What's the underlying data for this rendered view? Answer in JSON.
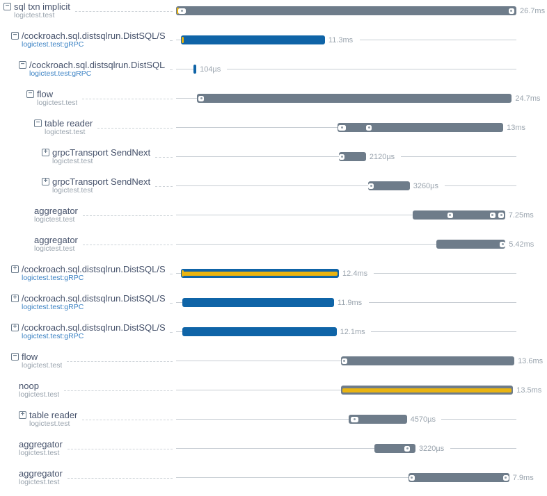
{
  "chart_data": {
    "type": "bar",
    "variant": "trace-span-waterfall-gantt",
    "title": "",
    "unit": "ms",
    "trace_total_ms": 26.7,
    "timeline_axis": "hidden (no ticks shown; bars scaled to total trace duration 26.7ms)",
    "spans": [
      {
        "name": "sql txn implicit",
        "service": "logictest.test",
        "service_is_link": false,
        "toggle": "collapse",
        "depth": 0,
        "start_ms": 0,
        "duration_ms": 26.7,
        "duration_label": "26.7ms",
        "color": "gray",
        "yellow_tick": true,
        "yellow_stripe": false,
        "markers": [
          {
            "at_ms": 0.44,
            "style": "pill"
          },
          {
            "at_ms": 26.3,
            "style": "dot"
          }
        ]
      },
      {
        "name": "/cockroach.sql.distsqlrun.DistSQL/Set",
        "service": "logictest.test:gRPC",
        "service_is_link": true,
        "toggle": "collapse",
        "depth": 1,
        "start_ms": 0.38,
        "duration_ms": 11.3,
        "duration_label": "11.3ms",
        "color": "blue",
        "yellow_tick": true,
        "yellow_stripe": false,
        "markers": []
      },
      {
        "name": "/cockroach.sql.distsqlrun.DistSQL/S",
        "service": "logictest.test:gRPC",
        "service_is_link": true,
        "toggle": "collapse",
        "depth": 2,
        "start_ms": 1.37,
        "duration_ms": 0.104,
        "duration_label": "104µs",
        "color": "blue",
        "yellow_tick": false,
        "yellow_stripe": false,
        "markers": []
      },
      {
        "name": "flow",
        "service": "logictest.test",
        "service_is_link": false,
        "toggle": "collapse",
        "depth": 3,
        "start_ms": 1.64,
        "duration_ms": 24.7,
        "duration_label": "24.7ms",
        "color": "gray",
        "yellow_tick": false,
        "yellow_stripe": false,
        "markers": [
          {
            "at_ms": 1.97,
            "style": "dot"
          }
        ]
      },
      {
        "name": "table reader",
        "service": "logictest.test",
        "service_is_link": false,
        "toggle": "collapse",
        "depth": 4,
        "start_ms": 12.67,
        "duration_ms": 13,
        "duration_label": "13ms",
        "color": "gray",
        "yellow_tick": false,
        "yellow_stripe": false,
        "markers": [
          {
            "at_ms": 13.05,
            "style": "pill"
          },
          {
            "at_ms": 15.13,
            "style": "dot"
          }
        ]
      },
      {
        "name": "grpcTransport SendNext",
        "service": "logictest.test",
        "service_is_link": false,
        "toggle": "expand",
        "depth": 5,
        "start_ms": 12.78,
        "duration_ms": 2.12,
        "duration_label": "2120µs",
        "color": "gray",
        "yellow_tick": false,
        "yellow_stripe": false,
        "markers": [
          {
            "at_ms": 13.0,
            "style": "dot"
          }
        ]
      },
      {
        "name": "grpcTransport SendNext",
        "service": "logictest.test",
        "service_is_link": false,
        "toggle": "expand",
        "depth": 5,
        "start_ms": 15.07,
        "duration_ms": 3.26,
        "duration_label": "3260µs",
        "color": "gray",
        "yellow_tick": false,
        "yellow_stripe": false,
        "markers": [
          {
            "at_ms": 15.29,
            "style": "dot"
          }
        ]
      },
      {
        "name": "aggregator",
        "service": "logictest.test",
        "service_is_link": false,
        "toggle": null,
        "depth": 4,
        "start_ms": 18.56,
        "duration_ms": 7.25,
        "duration_label": "7.25ms",
        "color": "gray",
        "yellow_tick": false,
        "yellow_stripe": false,
        "markers": [
          {
            "at_ms": 21.51,
            "style": "dot"
          },
          {
            "at_ms": 24.84,
            "style": "dot"
          },
          {
            "at_ms": 25.5,
            "style": "dot"
          }
        ]
      },
      {
        "name": "aggregator",
        "service": "logictest.test",
        "service_is_link": false,
        "toggle": null,
        "depth": 4,
        "start_ms": 20.42,
        "duration_ms": 5.42,
        "duration_label": "5.42ms",
        "color": "gray",
        "yellow_tick": false,
        "yellow_stripe": false,
        "markers": [
          {
            "at_ms": 25.61,
            "style": "dot"
          }
        ]
      },
      {
        "name": "/cockroach.sql.distsqlrun.DistSQL/Set",
        "service": "logictest.test:gRPC",
        "service_is_link": true,
        "toggle": "expand",
        "depth": 1,
        "start_ms": 0.38,
        "duration_ms": 12.4,
        "duration_label": "12.4ms",
        "color": "blue",
        "yellow_tick": true,
        "yellow_stripe": true,
        "markers": []
      },
      {
        "name": "/cockroach.sql.distsqlrun.DistSQL/Set",
        "service": "logictest.test:gRPC",
        "service_is_link": true,
        "toggle": "expand",
        "depth": 1,
        "start_ms": 0.49,
        "duration_ms": 11.9,
        "duration_label": "11.9ms",
        "color": "blue",
        "yellow_tick": false,
        "yellow_stripe": false,
        "markers": []
      },
      {
        "name": "/cockroach.sql.distsqlrun.DistSQL/Set",
        "service": "logictest.test:gRPC",
        "service_is_link": true,
        "toggle": "expand",
        "depth": 1,
        "start_ms": 0.49,
        "duration_ms": 12.1,
        "duration_label": "12.1ms",
        "color": "blue",
        "yellow_tick": false,
        "yellow_stripe": false,
        "markers": []
      },
      {
        "name": "flow",
        "service": "logictest.test",
        "service_is_link": false,
        "toggle": "collapse",
        "depth": 1,
        "start_ms": 12.94,
        "duration_ms": 13.6,
        "duration_label": "13.6ms",
        "color": "gray",
        "yellow_tick": false,
        "yellow_stripe": false,
        "markers": [
          {
            "at_ms": 13.21,
            "style": "dot"
          }
        ]
      },
      {
        "name": "noop",
        "service": "logictest.test",
        "service_is_link": false,
        "toggle": null,
        "depth": 2,
        "start_ms": 12.94,
        "duration_ms": 13.5,
        "duration_label": "13.5ms",
        "color": "gray",
        "yellow_tick": false,
        "yellow_stripe": true,
        "markers": []
      },
      {
        "name": "table reader",
        "service": "logictest.test",
        "service_is_link": false,
        "toggle": "expand",
        "depth": 2,
        "start_ms": 13.54,
        "duration_ms": 4.57,
        "duration_label": "4570µs",
        "color": "gray",
        "yellow_tick": false,
        "yellow_stripe": false,
        "markers": [
          {
            "at_ms": 13.98,
            "style": "pill"
          }
        ]
      },
      {
        "name": "aggregator",
        "service": "logictest.test",
        "service_is_link": false,
        "toggle": null,
        "depth": 2,
        "start_ms": 15.56,
        "duration_ms": 3.22,
        "duration_label": "3220µs",
        "color": "gray",
        "yellow_tick": false,
        "yellow_stripe": false,
        "markers": [
          {
            "at_ms": 18.13,
            "style": "dot"
          }
        ]
      },
      {
        "name": "aggregator",
        "service": "logictest.test",
        "service_is_link": false,
        "toggle": null,
        "depth": 2,
        "start_ms": 18.24,
        "duration_ms": 7.9,
        "duration_label": "7.9ms",
        "color": "gray",
        "yellow_tick": false,
        "yellow_stripe": false,
        "markers": [
          {
            "at_ms": 18.51,
            "style": "dot"
          },
          {
            "at_ms": 25.88,
            "style": "dot"
          }
        ]
      }
    ]
  },
  "colors": {
    "span_gray": "#6e7c8a",
    "span_blue": "#0f64a7",
    "event_yellow": "#e9b411",
    "name_text": "#46526b",
    "service_text": "#9aa4ae",
    "service_link_text": "#3b82c4",
    "duration_text": "#9aa4ae",
    "track_line": "#c6ccd2",
    "toggle_icon": "#68798a",
    "marker_white": "#ffffff"
  },
  "toggle_glyphs": {
    "collapse": "−",
    "expand": "+"
  }
}
